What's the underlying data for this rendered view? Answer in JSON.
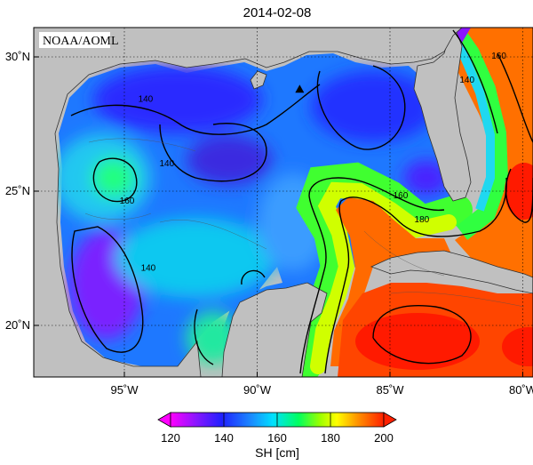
{
  "title": "2014-02-08",
  "credit": "NOAA/AOML",
  "map": {
    "lat_ticks": [
      {
        "value": 30,
        "label": "30˚N"
      },
      {
        "value": 25,
        "label": "25˚N"
      },
      {
        "value": 20,
        "label": "20˚N"
      }
    ],
    "lon_ticks": [
      {
        "value": -95,
        "label": "95˚W"
      },
      {
        "value": -90,
        "label": "90˚W"
      },
      {
        "value": -85,
        "label": "85˚W"
      },
      {
        "value": -80,
        "label": "80˚W"
      }
    ],
    "contour_labels": [
      {
        "text": "140",
        "lon": -94.2,
        "lat": 28.4
      },
      {
        "text": "140",
        "lon": -93.4,
        "lat": 26.0
      },
      {
        "text": "140",
        "lon": -82.1,
        "lat": 29.1
      },
      {
        "text": "160",
        "lon": -94.9,
        "lat": 24.6
      },
      {
        "text": "160",
        "lon": -80.9,
        "lat": 30.0
      },
      {
        "text": "160",
        "lon": -84.6,
        "lat": 24.8
      },
      {
        "text": "180",
        "lon": -83.8,
        "lat": 23.9
      },
      {
        "text": "140",
        "lon": -94.1,
        "lat": 22.1
      }
    ],
    "marker": {
      "shape": "triangle",
      "lon": -88.4,
      "lat": 28.8,
      "color": "#000000"
    }
  },
  "colorbar": {
    "label": "SH [cm]",
    "ticks": [
      "120",
      "140",
      "160",
      "180",
      "200"
    ],
    "colors": [
      "#ff00ff",
      "#2020ff",
      "#00e0ff",
      "#00ff00",
      "#ffff00",
      "#ff2000"
    ]
  }
}
